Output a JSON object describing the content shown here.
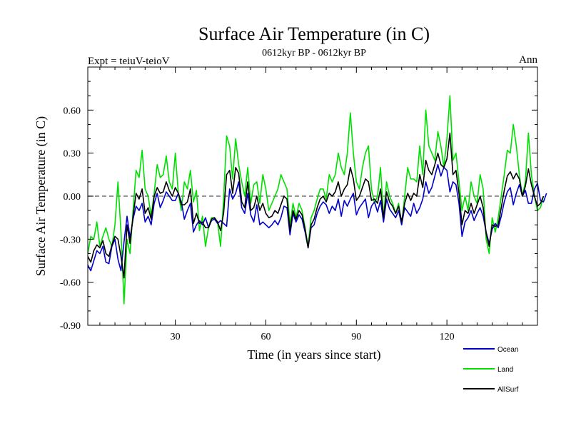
{
  "chart_data": {
    "type": "line",
    "title": "Surface Air Temperature (in C)",
    "subtitle": "0612kyr BP - 0612kyr BP",
    "left_label": "Expt = teiuV-teioV",
    "right_label": "Ann",
    "xlabel": "Time (in years since start)",
    "ylabel": "Surface Air Temperature (in C)",
    "xlim": [
      1,
      150
    ],
    "ylim": [
      -0.9,
      0.9
    ],
    "x_ticks": [
      30,
      60,
      90,
      120
    ],
    "x_tick_labels": [
      "30",
      "60",
      "90",
      "120"
    ],
    "y_ticks": [
      -0.9,
      -0.6,
      -0.3,
      0.0,
      0.3,
      0.6
    ],
    "y_tick_labels": [
      "-0.90",
      "-0.60",
      "-0.30",
      "0.00",
      "0.30",
      "0.60"
    ],
    "zero_line": "dashed",
    "legend_position": "bottom-right",
    "series": [
      {
        "name": "Ocean",
        "color": "#0000cc",
        "values": [
          -0.48,
          -0.52,
          -0.45,
          -0.38,
          -0.4,
          -0.35,
          -0.46,
          -0.47,
          -0.35,
          -0.3,
          -0.44,
          -0.52,
          -0.32,
          -0.14,
          -0.29,
          -0.16,
          -0.07,
          -0.1,
          -0.05,
          -0.18,
          -0.14,
          -0.2,
          -0.05,
          0.02,
          -0.08,
          -0.03,
          0.03,
          0.0,
          -0.03,
          -0.03,
          0.02,
          -0.04,
          -0.16,
          -0.1,
          -0.05,
          -0.25,
          -0.2,
          -0.17,
          -0.2,
          -0.15,
          -0.22,
          -0.17,
          -0.16,
          -0.19,
          -0.17,
          -0.19,
          -0.21,
          0.05,
          -0.02,
          0.02,
          0.1,
          -0.08,
          -0.12,
          0.02,
          -0.13,
          -0.18,
          -0.06,
          -0.2,
          -0.18,
          -0.2,
          -0.22,
          -0.2,
          -0.17,
          -0.2,
          -0.15,
          -0.07,
          -0.08,
          -0.27,
          -0.12,
          -0.18,
          -0.13,
          -0.16,
          -0.25,
          -0.36,
          -0.22,
          -0.2,
          -0.12,
          -0.07,
          -0.04,
          -0.06,
          -0.12,
          -0.07,
          -0.1,
          -0.02,
          -0.14,
          -0.03,
          -0.07,
          -0.02,
          0.02,
          -0.13,
          -0.08,
          -0.05,
          -0.02,
          -0.15,
          -0.07,
          -0.04,
          -0.11,
          -0.03,
          -0.18,
          -0.02,
          -0.09,
          -0.12,
          -0.15,
          -0.1,
          -0.2,
          -0.08,
          -0.11,
          -0.14,
          -0.05,
          -0.12,
          -0.08,
          -0.02,
          0.1,
          0.02,
          0.06,
          0.14,
          0.22,
          0.14,
          0.2,
          0.18,
          0.03,
          0.1,
          0.08,
          -0.05,
          -0.28,
          -0.18,
          -0.15,
          -0.1,
          -0.17,
          -0.12,
          -0.08,
          -0.14,
          -0.25,
          -0.33,
          -0.23,
          -0.19,
          -0.22,
          -0.14,
          -0.04,
          0.03,
          0.06,
          -0.06,
          0.02,
          0.08,
          0.0,
          0.04,
          -0.05,
          -0.05,
          0.05,
          0.09,
          -0.03,
          -0.04,
          0.02
        ]
      },
      {
        "name": "Land",
        "color": "#00e000",
        "values": [
          -0.4,
          -0.28,
          -0.3,
          -0.18,
          -0.35,
          -0.28,
          -0.22,
          -0.3,
          -0.35,
          -0.2,
          0.1,
          -0.25,
          -0.75,
          -0.3,
          -0.4,
          -0.1,
          0.18,
          0.13,
          0.32,
          0.05,
          0.0,
          -0.14,
          0.02,
          0.22,
          0.13,
          0.15,
          0.28,
          0.1,
          0.05,
          0.3,
          0.02,
          -0.1,
          0.1,
          0.05,
          0.18,
          -0.04,
          0.04,
          -0.24,
          -0.14,
          -0.35,
          -0.22,
          -0.15,
          -0.15,
          -0.18,
          -0.35,
          -0.02,
          0.42,
          0.35,
          0.12,
          0.4,
          0.22,
          0.1,
          0.0,
          0.2,
          -0.05,
          0.08,
          0.1,
          -0.05,
          0.15,
          0.05,
          -0.1,
          -0.05,
          0.0,
          0.05,
          0.15,
          0.1,
          0.05,
          -0.2,
          -0.05,
          -0.15,
          -0.05,
          -0.1,
          -0.22,
          -0.35,
          -0.15,
          -0.1,
          -0.02,
          0.05,
          0.05,
          -0.02,
          0.15,
          0.1,
          0.15,
          0.3,
          0.2,
          0.15,
          0.3,
          0.58,
          0.3,
          0.1,
          0.05,
          0.2,
          0.3,
          0.35,
          0.05,
          -0.05,
          0.0,
          0.2,
          -0.15,
          0.1,
          0.0,
          -0.05,
          -0.12,
          -0.05,
          -0.2,
          0.0,
          0.2,
          0.12,
          0.12,
          0.1,
          0.35,
          0.15,
          0.6,
          0.35,
          0.3,
          0.25,
          0.45,
          0.35,
          0.2,
          0.4,
          0.7,
          0.25,
          0.3,
          0.1,
          -0.1,
          0.0,
          -0.1,
          0.1,
          0.0,
          -0.05,
          0.15,
          0.05,
          -0.3,
          -0.4,
          -0.15,
          -0.25,
          -0.15,
          0.0,
          0.15,
          0.32,
          0.3,
          0.5,
          0.35,
          0.15,
          0.0,
          0.1,
          0.44,
          0.15,
          0.0,
          -0.1,
          -0.08,
          0.0
        ]
      },
      {
        "name": "AllSurf",
        "color": "#000000",
        "values": [
          -0.42,
          -0.46,
          -0.38,
          -0.34,
          -0.36,
          -0.31,
          -0.4,
          -0.42,
          -0.34,
          -0.28,
          -0.3,
          -0.42,
          -0.57,
          -0.2,
          -0.33,
          -0.14,
          0.02,
          -0.02,
          0.05,
          -0.12,
          -0.08,
          -0.16,
          0.0,
          0.06,
          0.02,
          0.03,
          0.1,
          0.04,
          0.0,
          0.06,
          0.02,
          -0.06,
          -0.06,
          -0.04,
          0.05,
          -0.19,
          -0.12,
          -0.19,
          -0.18,
          -0.22,
          -0.22,
          -0.16,
          -0.15,
          -0.18,
          -0.24,
          -0.12,
          0.15,
          0.18,
          0.02,
          0.2,
          0.16,
          -0.04,
          -0.08,
          0.1,
          -0.1,
          -0.08,
          0.0,
          -0.1,
          -0.05,
          -0.12,
          -0.15,
          -0.14,
          -0.1,
          -0.12,
          -0.06,
          0.0,
          -0.02,
          -0.24,
          -0.1,
          -0.16,
          -0.1,
          -0.13,
          -0.23,
          -0.36,
          -0.2,
          -0.16,
          -0.08,
          -0.02,
          0.0,
          -0.04,
          0.02,
          0.0,
          0.03,
          0.1,
          0.0,
          0.05,
          0.08,
          0.2,
          0.12,
          -0.03,
          0.0,
          0.06,
          0.12,
          0.1,
          -0.03,
          -0.02,
          -0.05,
          0.05,
          -0.15,
          0.03,
          -0.04,
          -0.07,
          -0.12,
          -0.07,
          -0.18,
          -0.05,
          0.02,
          -0.03,
          0.02,
          0.0,
          0.15,
          0.06,
          0.25,
          0.18,
          0.15,
          0.22,
          0.3,
          0.22,
          0.2,
          0.26,
          0.44,
          0.15,
          0.18,
          0.02,
          -0.2,
          -0.1,
          -0.12,
          -0.05,
          -0.12,
          -0.06,
          0.0,
          -0.08,
          -0.26,
          -0.35,
          -0.2,
          -0.21,
          -0.2,
          -0.08,
          0.04,
          0.14,
          0.17,
          0.12,
          0.16,
          0.12,
          0.0,
          0.07,
          0.19,
          0.08,
          0.0,
          -0.07,
          -0.05,
          0.0
        ]
      }
    ]
  }
}
